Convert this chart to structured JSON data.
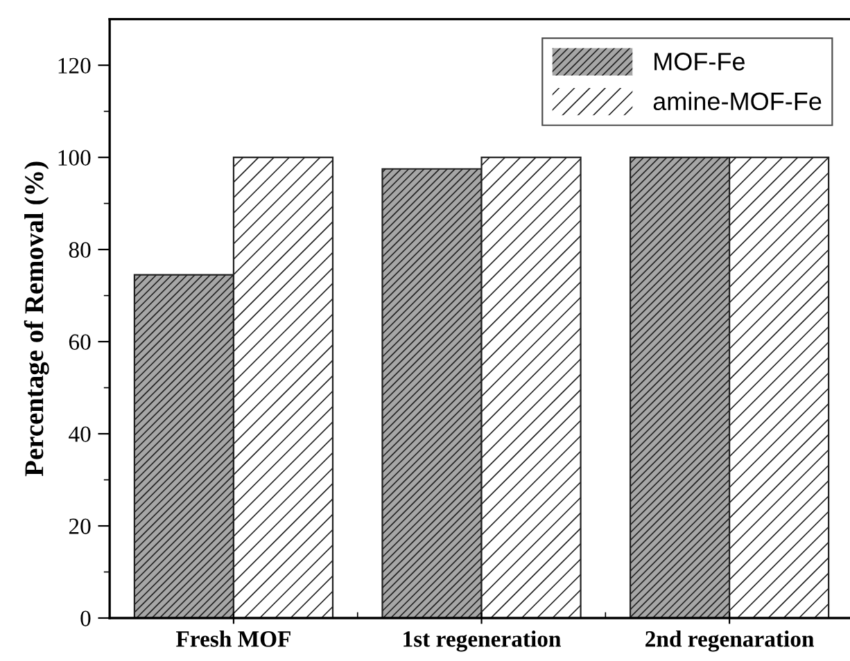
{
  "chart_data": {
    "type": "bar",
    "ylabel": "Percentage of Removal (%)",
    "categories": [
      "Fresh MOF",
      "1st regeneration",
      "2nd regenaration"
    ],
    "series": [
      {
        "name": "MOF-Fe",
        "color": "#a6a6a6",
        "values": [
          74.5,
          97.5,
          100
        ]
      },
      {
        "name": "amine-MOF-Fe",
        "color": "#ffffff",
        "values": [
          100,
          100,
          100
        ]
      }
    ],
    "ylim": [
      0,
      130
    ],
    "yticks": [
      0,
      20,
      40,
      60,
      80,
      100,
      120
    ],
    "grid": false,
    "legend": "top right"
  }
}
